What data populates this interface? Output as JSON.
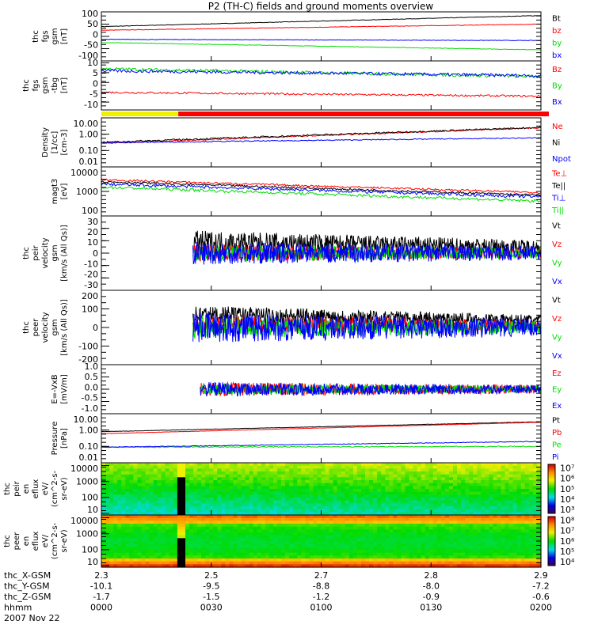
{
  "chart_data": {
    "type": "line",
    "title": "P2 (TH-C) fields and ground moments overview",
    "time_range_minutes": [
      0,
      120
    ],
    "data_gap_minutes": [
      21,
      23
    ],
    "panels": [
      {
        "ylabel": [
          "thc",
          "fgs",
          "gsm",
          "[nT]"
        ],
        "scale": "linear",
        "ylim": [
          -100,
          100
        ],
        "ticks": [
          "100",
          "50",
          "0",
          "-50",
          "-100"
        ],
        "tickvals": [
          100,
          50,
          0,
          -50,
          -100
        ],
        "series": [
          {
            "name": "Bt",
            "color": "#000000",
            "start": 40,
            "end": 85,
            "noise": 1,
            "from": 0
          },
          {
            "name": "bz",
            "color": "#ff0000",
            "start": 25,
            "end": 50,
            "noise": 1,
            "from": 0
          },
          {
            "name": "by",
            "color": "#00dd00",
            "start": -25,
            "end": -55,
            "noise": 1,
            "from": 0
          },
          {
            "name": "bx",
            "color": "#0000ff",
            "start": -12,
            "end": -17,
            "noise": 1,
            "from": 0
          }
        ]
      },
      {
        "ylabel": [
          "thc",
          "fgs",
          "gsm",
          "-tbg",
          "[nT]"
        ],
        "scale": "linear",
        "ylim": [
          -14,
          11
        ],
        "ticks": [
          "10",
          "5",
          "0",
          "-5",
          "-10"
        ],
        "tickvals": [
          10,
          5,
          0,
          -5,
          -10
        ],
        "series": [
          {
            "name": "Bz",
            "color": "#ff0000",
            "start": -5,
            "end": -7,
            "noise": 0.5,
            "from": 0
          },
          {
            "name": "By",
            "color": "#00dd00",
            "start": 7,
            "end": 3,
            "noise": 0.8,
            "from": 0
          },
          {
            "name": "Bx",
            "color": "#0000ff",
            "start": 6,
            "end": 3.5,
            "noise": 0.8,
            "from": 0
          }
        ]
      },
      {
        "ylabel": [
          "Density",
          "[1/cc]",
          "[cm-3]"
        ],
        "scale": "log",
        "ylim": [
          0.01,
          10
        ],
        "ticks": [
          "10.00",
          "1.00",
          "0.10",
          "0.01"
        ],
        "tickvals": [
          10,
          1,
          0.1,
          0.01
        ],
        "series": [
          {
            "name": "Ne",
            "color": "#ff0000",
            "start": 0.28,
            "end": 2.5,
            "noise": 0.04,
            "from": 0
          },
          {
            "name": "Ni",
            "color": "#000000",
            "start": 0.32,
            "end": 2.6,
            "noise": 0.05,
            "from": 0
          },
          {
            "name": "Npot",
            "color": "#0000ff",
            "start": 0.3,
            "end": 0.6,
            "noise": 0.03,
            "from": 0
          }
        ]
      },
      {
        "ylabel": [
          "magt3",
          "[eV]"
        ],
        "scale": "log",
        "ylim": [
          100,
          10000
        ],
        "ticks": [
          "10000",
          "1000",
          "100"
        ],
        "tickvals": [
          10000,
          1000,
          100
        ],
        "series": [
          {
            "name": "Te⊥",
            "color": "#ff0000",
            "start": 3000,
            "end": 900,
            "noise": 0.04,
            "from": 0
          },
          {
            "name": "Te||",
            "color": "#000000",
            "start": 2500,
            "end": 700,
            "noise": 0.04,
            "from": 0
          },
          {
            "name": "Ti⊥",
            "color": "#0000ff",
            "start": 2000,
            "end": 600,
            "noise": 0.06,
            "from": 0
          },
          {
            "name": "Ti||",
            "color": "#00dd00",
            "start": 1500,
            "end": 400,
            "noise": 0.06,
            "from": 0
          }
        ]
      },
      {
        "ylabel": [
          "thc",
          "peir",
          "velocity",
          "gsm",
          "[km/s (All Qs)]"
        ],
        "scale": "linear",
        "ylim": [
          -30,
          30
        ],
        "ticks": [
          "30",
          "20",
          "10",
          "0",
          "-10",
          "-20",
          "-30"
        ],
        "tickvals": [
          30,
          20,
          10,
          0,
          -10,
          -20,
          -30
        ],
        "series": [
          {
            "name": "Vt",
            "color": "#000000",
            "start": 10,
            "end": 5,
            "noise": 8,
            "from": 25
          },
          {
            "name": "Vz",
            "color": "#ff0000",
            "start": 0,
            "end": 0,
            "noise": 6,
            "from": 25
          },
          {
            "name": "Vy",
            "color": "#00dd00",
            "start": 0,
            "end": 0,
            "noise": 6,
            "from": 25
          },
          {
            "name": "Vx",
            "color": "#0000ff",
            "start": 0,
            "end": 0,
            "noise": 8,
            "from": 25
          }
        ]
      },
      {
        "ylabel": [
          "thc",
          "peer",
          "velocity",
          "gsm",
          "[km/s (All Qs)]"
        ],
        "scale": "linear",
        "ylim": [
          -200,
          200
        ],
        "ticks": [
          "200",
          "100",
          "0",
          "-100",
          "-200"
        ],
        "tickvals": [
          200,
          100,
          0,
          -100,
          -200
        ],
        "series": [
          {
            "name": "Vt",
            "color": "#000000",
            "start": 80,
            "end": 40,
            "noise": 40,
            "from": 25
          },
          {
            "name": "Vz",
            "color": "#ff0000",
            "start": 20,
            "end": 10,
            "noise": 40,
            "from": 25
          },
          {
            "name": "Vy",
            "color": "#00dd00",
            "start": 0,
            "end": 0,
            "noise": 50,
            "from": 25
          },
          {
            "name": "Vx",
            "color": "#0000ff",
            "start": 0,
            "end": 0,
            "noise": 70,
            "from": 25
          }
        ]
      },
      {
        "ylabel": [
          "E=-VxB",
          "[mV/m]"
        ],
        "scale": "linear",
        "ylim": [
          -1,
          1
        ],
        "ticks": [
          "1.0",
          "0.5",
          "0.0",
          "-0.5",
          "-1.0"
        ],
        "tickvals": [
          1,
          0.5,
          0,
          -0.5,
          -1
        ],
        "series": [
          {
            "name": "Ez",
            "color": "#ff0000",
            "start": 0,
            "end": 0,
            "noise": 0.25,
            "from": 27
          },
          {
            "name": "Ey",
            "color": "#00dd00",
            "start": 0,
            "end": 0,
            "noise": 0.2,
            "from": 27
          },
          {
            "name": "Ex",
            "color": "#0000ff",
            "start": 0,
            "end": 0,
            "noise": 0.25,
            "from": 27
          }
        ]
      },
      {
        "ylabel": [
          "Pressure",
          "[nPa]"
        ],
        "scale": "log",
        "ylim": [
          0.01,
          10
        ],
        "ticks": [
          "10.00",
          "1.00",
          "0.10",
          "0.01"
        ],
        "tickvals": [
          10,
          1,
          0.1,
          0.01
        ],
        "series": [
          {
            "name": "Pt",
            "color": "#000000",
            "start": 0.8,
            "end": 3.2,
            "noise": 0.01,
            "from": 0
          },
          {
            "name": "Pb",
            "color": "#ff0000",
            "start": 0.6,
            "end": 3.0,
            "noise": 0.01,
            "from": 0
          },
          {
            "name": "Pe",
            "color": "#00dd00",
            "start": 0.09,
            "end": 0.1,
            "noise": 0.03,
            "from": 0
          },
          {
            "name": "Pi",
            "color": "#0000ff",
            "start": 0.09,
            "end": 0.2,
            "noise": 0.02,
            "from": 0
          }
        ]
      },
      {
        "ylabel": [
          "thc",
          "peir",
          "en",
          "eflux",
          "eV/",
          "(cm^2-s-",
          "sr-eV)"
        ],
        "scale": "log",
        "type": "spectrogram",
        "ylim": [
          8,
          15000
        ],
        "ticks": [
          "10000",
          "1000",
          "100",
          "10"
        ],
        "tickvals": [
          10000,
          1000,
          100,
          10
        ],
        "colorbar": [
          "10⁷",
          "10⁶",
          "10⁵",
          "10⁴",
          "10³"
        ],
        "profile": "ion"
      },
      {
        "ylabel": [
          "thc",
          "peer",
          "en",
          "eflux",
          "eV/",
          "(cm^2-s-",
          "sr-eV)"
        ],
        "scale": "log",
        "type": "spectrogram",
        "ylim": [
          8,
          15000
        ],
        "ticks": [
          "10000",
          "1000",
          "100",
          "10"
        ],
        "tickvals": [
          10000,
          1000,
          100,
          10
        ],
        "colorbar": [
          "10⁸",
          "10⁷",
          "10⁶",
          "10⁵",
          "10⁴"
        ],
        "profile": "electron"
      }
    ],
    "x_axis": {
      "rows": [
        {
          "label": "thc_X-GSM",
          "values": [
            "2.3",
            "2.5",
            "2.7",
            "2.8",
            "2.9"
          ]
        },
        {
          "label": "thc_Y-GSM",
          "values": [
            "-10.1",
            "-9.5",
            "-8.8",
            "-8.0",
            "-7.2"
          ]
        },
        {
          "label": "thc_Z-GSM",
          "values": [
            "-1.7",
            "-1.5",
            "-1.2",
            "-0.9",
            "-0.6"
          ]
        },
        {
          "label": "hhmm",
          "values": [
            "0000",
            "0030",
            "0100",
            "0130",
            "0200"
          ]
        }
      ],
      "tick_minutes": [
        0,
        30,
        60,
        90,
        120
      ],
      "date": "2007 Nov 22"
    }
  }
}
